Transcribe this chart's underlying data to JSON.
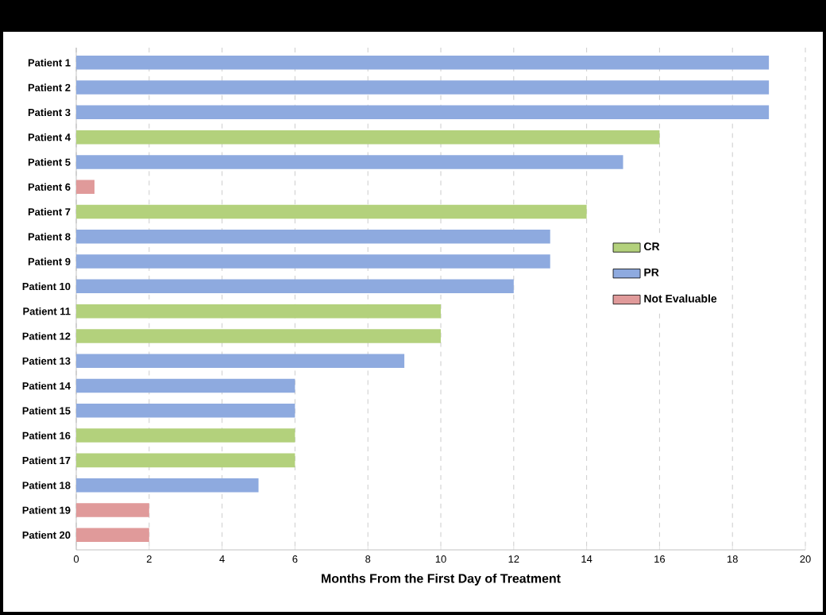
{
  "chart_data": {
    "type": "bar",
    "orientation": "horizontal",
    "xlabel": "Months From the First Day of Treatment",
    "categories": [
      "Patient 1",
      "Patient 2",
      "Patient 3",
      "Patient 4",
      "Patient 5",
      "Patient 6",
      "Patient 7",
      "Patient 8",
      "Patient 9",
      "Patient 10",
      "Patient 11",
      "Patient 12",
      "Patient 13",
      "Patient 14",
      "Patient 15",
      "Patient 16",
      "Patient 17",
      "Patient 18",
      "Patient 19",
      "Patient 20"
    ],
    "series": [
      {
        "name": "CR",
        "color": "#b3d17c",
        "values": [
          null,
          null,
          null,
          16,
          null,
          null,
          14,
          null,
          null,
          null,
          10,
          10,
          null,
          null,
          null,
          6,
          6,
          null,
          null,
          null
        ]
      },
      {
        "name": "PR",
        "color": "#8eaadf",
        "values": [
          19,
          19,
          19,
          null,
          15,
          null,
          null,
          13,
          13,
          12,
          null,
          null,
          9,
          6,
          6,
          null,
          null,
          5,
          null,
          null
        ]
      },
      {
        "name": "Not Evaluable",
        "color": "#e09a9a",
        "values": [
          null,
          null,
          null,
          null,
          null,
          0.5,
          null,
          null,
          null,
          null,
          null,
          null,
          null,
          null,
          null,
          null,
          null,
          null,
          2,
          2
        ]
      }
    ],
    "xlim": [
      0,
      20
    ],
    "xticks": [
      0,
      2,
      4,
      6,
      8,
      10,
      12,
      14,
      16,
      18,
      20
    ],
    "grid": "x",
    "legend": "right"
  }
}
